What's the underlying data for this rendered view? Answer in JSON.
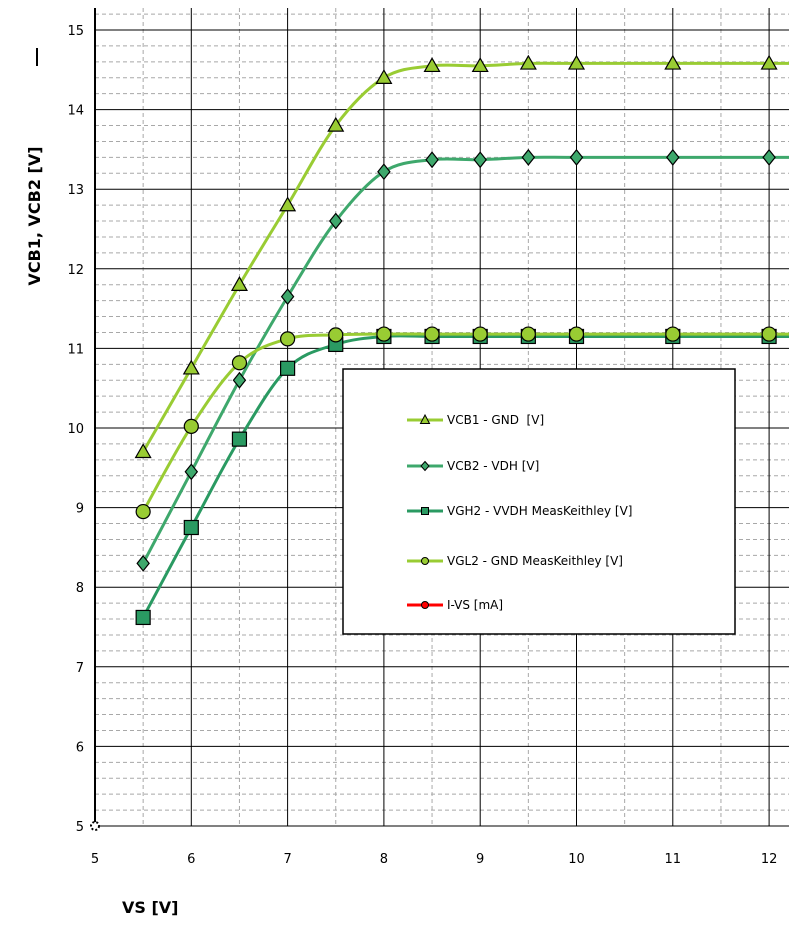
{
  "chart_data": {
    "type": "line",
    "xlabel": "VS [V]",
    "ylabel": "VCB1, VCB2 [V]",
    "xlim": [
      5,
      12.2
    ],
    "ylim": [
      5,
      15.2
    ],
    "x_ticks": [
      "5",
      "6",
      "7",
      "8",
      "9",
      "10",
      "11",
      "12"
    ],
    "y_ticks": [
      "5",
      "6",
      "7",
      "8",
      "9",
      "10",
      "11",
      "12",
      "13",
      "14",
      "15"
    ],
    "grid": true,
    "legend_position": "center-right",
    "series": [
      {
        "name": "VCB1 - GND  [V]",
        "color": "#99cc33",
        "marker": "triangle",
        "x": [
          5.5,
          6,
          6.5,
          7,
          7.5,
          8,
          8.5,
          9,
          9.5,
          10,
          11,
          12
        ],
        "y": [
          9.7,
          10.75,
          11.8,
          12.8,
          13.8,
          14.4,
          14.55,
          14.55,
          14.58,
          14.58,
          14.58,
          14.58
        ]
      },
      {
        "name": "VCB2 - VDH [V]",
        "color": "#3ea86c",
        "marker": "diamond",
        "x": [
          5.5,
          6,
          6.5,
          7,
          7.5,
          8,
          8.5,
          9,
          9.5,
          10,
          11,
          12
        ],
        "y": [
          8.3,
          9.45,
          10.6,
          11.65,
          12.6,
          13.22,
          13.37,
          13.37,
          13.4,
          13.4,
          13.4,
          13.4
        ]
      },
      {
        "name": "VGH2 - VVDH MeasKeithley [V]",
        "color": "#2a9a62",
        "marker": "square",
        "x": [
          5.5,
          6,
          6.5,
          7,
          7.5,
          8,
          8.5,
          9,
          9.5,
          10,
          11,
          12
        ],
        "y": [
          7.62,
          8.75,
          9.86,
          10.75,
          11.05,
          11.15,
          11.15,
          11.15,
          11.15,
          11.15,
          11.15,
          11.15
        ]
      },
      {
        "name": "VGL2 - GND MeasKeithley [V]",
        "color": "#99cc33",
        "marker": "circle",
        "x": [
          5.5,
          6,
          6.5,
          7,
          7.5,
          8,
          8.5,
          9,
          9.5,
          10,
          11,
          12
        ],
        "y": [
          8.95,
          10.02,
          10.82,
          11.12,
          11.17,
          11.18,
          11.18,
          11.18,
          11.18,
          11.18,
          11.18,
          11.18
        ]
      },
      {
        "name": "I-VS [mA]",
        "color": "#ff0000",
        "marker": "circle",
        "x": [],
        "y": []
      }
    ]
  }
}
